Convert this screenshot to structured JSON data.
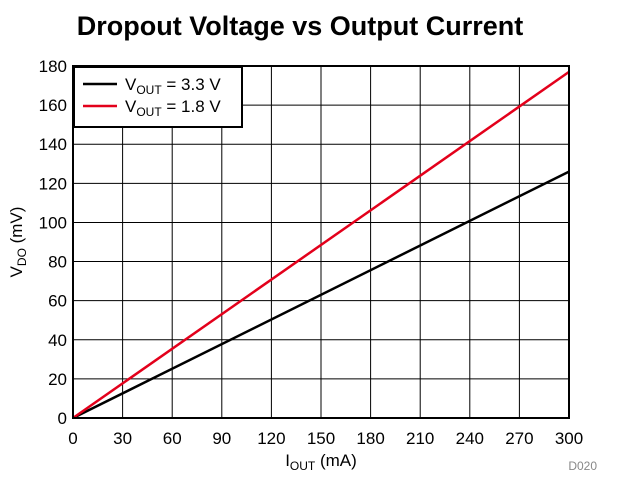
{
  "chart_data": {
    "type": "line",
    "title": "Dropout Voltage vs Output Current",
    "xlabel": {
      "main": "I",
      "sub": "OUT",
      "unit": " (mA)"
    },
    "ylabel": {
      "main": "V",
      "sub": "DO",
      "unit": " (mV)"
    },
    "xlim": [
      0,
      300
    ],
    "ylim": [
      0,
      180
    ],
    "xticks": [
      0,
      30,
      60,
      90,
      120,
      150,
      180,
      210,
      240,
      270,
      300
    ],
    "yticks": [
      0,
      20,
      40,
      60,
      80,
      100,
      120,
      140,
      160,
      180
    ],
    "grid": true,
    "legend_position": "top-left",
    "series": [
      {
        "name": "VOUT = 3.3 V",
        "label_main": "V",
        "label_sub": "OUT",
        "label_rest": " = 3.3 V",
        "color": "#000000",
        "x": [
          0,
          300
        ],
        "y": [
          0,
          126
        ]
      },
      {
        "name": "VOUT = 1.8 V",
        "label_main": "V",
        "label_sub": "OUT",
        "label_rest": " = 1.8 V",
        "color": "#e3001b",
        "x": [
          0,
          300
        ],
        "y": [
          0,
          177
        ]
      }
    ],
    "figure_id": "D020"
  }
}
